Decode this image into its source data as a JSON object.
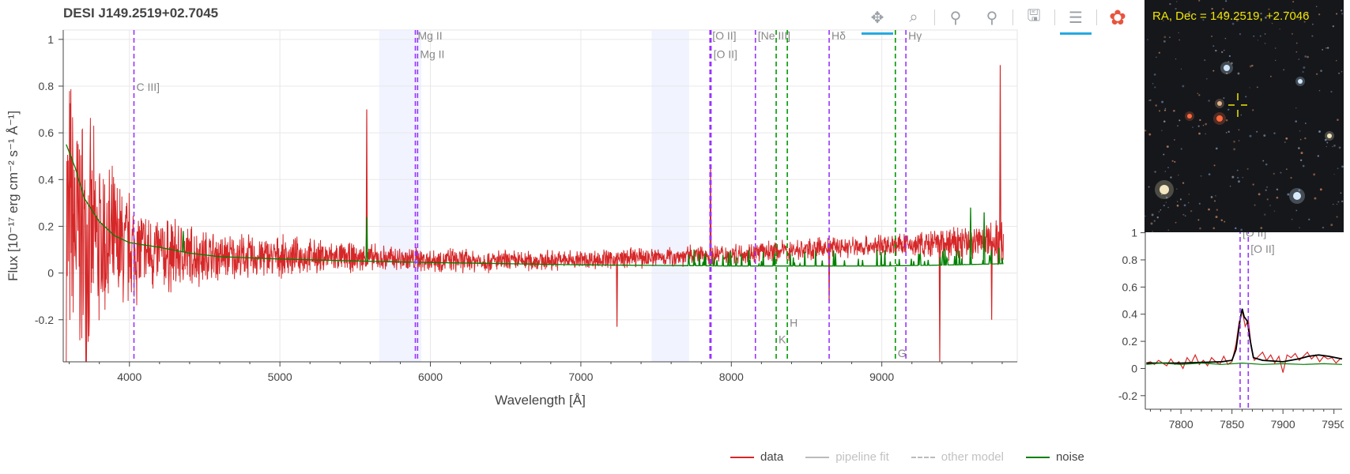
{
  "title": "DESI J149.2519+02.7045",
  "toolbar": [
    {
      "name": "pan-tool",
      "glyph": "✥",
      "active": true
    },
    {
      "name": "box-zoom-tool",
      "glyph": "⌕",
      "active": false
    },
    {
      "name": "x-zoom-in-tool",
      "glyph": "⚲",
      "active": false
    },
    {
      "name": "x-zoom-out-tool",
      "glyph": "⚲",
      "active": false
    },
    {
      "name": "save-tool",
      "glyph": "🖫",
      "active": false
    },
    {
      "name": "hover-tool",
      "glyph": "☰",
      "active": true
    },
    {
      "name": "bokeh-logo",
      "glyph": "✿",
      "active": false
    }
  ],
  "cutout": {
    "label": "RA, Dec = 149.2519, +2.7046",
    "crosshair_color": "#f2e600"
  },
  "legend": [
    {
      "label": "data",
      "color": "#d62728",
      "style": "solid",
      "muted": false
    },
    {
      "label": "pipeline fit",
      "color": "#bbbbbb",
      "style": "solid",
      "muted": true
    },
    {
      "label": "other model",
      "color": "#bbbbbb",
      "style": "dashed",
      "muted": true
    },
    {
      "label": "noise",
      "color": "#008000",
      "style": "solid",
      "muted": false
    }
  ],
  "chart_data": [
    {
      "type": "line",
      "xlabel": "Wavelength [Å]",
      "ylabel": "Flux [10⁻¹⁷ erg cm⁻² s⁻¹ Å⁻¹]",
      "xlim": [
        3560,
        9900
      ],
      "ylim": [
        -0.38,
        1.04
      ],
      "xticks": [
        4000,
        5000,
        6000,
        7000,
        8000,
        9000
      ],
      "yticks": [
        -0.2,
        0,
        0.2,
        0.4,
        0.6,
        0.8,
        1
      ],
      "grid": true,
      "masked_bands": [
        [
          5660,
          5940
        ],
        [
          7470,
          7720
        ]
      ],
      "series": [
        {
          "name": "data",
          "color": "#d62728",
          "continuum": [
            [
              3580,
              0.22
            ],
            [
              3700,
              0.15
            ],
            [
              3900,
              0.11
            ],
            [
              4200,
              0.08
            ],
            [
              4600,
              0.07
            ],
            [
              5200,
              0.07
            ],
            [
              5800,
              0.06
            ],
            [
              6500,
              0.05
            ],
            [
              7200,
              0.06
            ],
            [
              7900,
              0.08
            ],
            [
              8200,
              0.09
            ],
            [
              8700,
              0.11
            ],
            [
              9200,
              0.12
            ],
            [
              9600,
              0.13
            ],
            [
              9810,
              0.14
            ]
          ],
          "noise_amp": [
            [
              3580,
              0.8
            ],
            [
              3800,
              0.45
            ],
            [
              4100,
              0.22
            ],
            [
              4600,
              0.12
            ],
            [
              5500,
              0.07
            ],
            [
              6800,
              0.05
            ],
            [
              7600,
              0.05
            ],
            [
              8300,
              0.05
            ],
            [
              9200,
              0.06
            ],
            [
              9810,
              0.12
            ]
          ],
          "spikes": [
            [
              5577,
              0.7
            ],
            [
              7862,
              0.45
            ],
            [
              9787,
              0.89
            ],
            [
              9385,
              -0.38
            ],
            [
              8650,
              -0.12
            ],
            [
              7240,
              -0.23
            ],
            [
              9730,
              -0.2
            ]
          ]
        },
        {
          "name": "noise",
          "color": "#008000",
          "curve": [
            [
              3580,
              0.55
            ],
            [
              3640,
              0.45
            ],
            [
              3700,
              0.32
            ],
            [
              3800,
              0.22
            ],
            [
              3900,
              0.16
            ],
            [
              4000,
              0.13
            ],
            [
              4200,
              0.11
            ],
            [
              4400,
              0.085
            ],
            [
              4600,
              0.07
            ],
            [
              5000,
              0.06
            ],
            [
              5600,
              0.05
            ],
            [
              6000,
              0.045
            ],
            [
              7000,
              0.035
            ],
            [
              8000,
              0.03
            ],
            [
              9000,
              0.03
            ],
            [
              9500,
              0.035
            ],
            [
              9810,
              0.04
            ]
          ],
          "spikes": [
            [
              4358,
              0.18
            ],
            [
              5577,
              0.24
            ],
            [
              9590,
              0.28
            ],
            [
              9680,
              0.26
            ]
          ]
        }
      ],
      "lines": [
        {
          "label": "C III]",
          "x": 4030,
          "color": "#9933ff",
          "label_y": 0.78
        },
        {
          "label": "Mg II",
          "x": 5900,
          "color": "#9933ff",
          "label_y": 1.0
        },
        {
          "label": "Mg II",
          "x": 5915,
          "color": "#9933ff",
          "label_y": 0.92
        },
        {
          "label": "[O II]",
          "x": 7858,
          "color": "#9933ff",
          "label_y": 1.0
        },
        {
          "label": "[O II]",
          "x": 7865,
          "color": "#9933ff",
          "label_y": 0.92
        },
        {
          "label": "[Ne III]",
          "x": 8160,
          "color": "#9933ff",
          "label_y": 1.0
        },
        {
          "label": "K",
          "x": 8298,
          "color": "#009900",
          "label_y": -0.3
        },
        {
          "label": "H",
          "x": 8372,
          "color": "#009900",
          "label_y": -0.23
        },
        {
          "label": "Hδ",
          "x": 8650,
          "color": "#9933ff",
          "label_y": 1.0
        },
        {
          "label": "G",
          "x": 9090,
          "color": "#009900",
          "label_y": -0.36
        },
        {
          "label": "Hγ",
          "x": 9160,
          "color": "#9933ff",
          "label_y": 1.0
        }
      ]
    },
    {
      "type": "line",
      "xlim": [
        7765,
        7958
      ],
      "ylim": [
        -0.3,
        1.05
      ],
      "xticks": [
        7800,
        7850,
        7900,
        7950
      ],
      "yticks": [
        -0.2,
        0,
        0.2,
        0.4,
        0.6,
        0.8,
        1
      ],
      "grid": false,
      "series": [
        {
          "name": "data",
          "color": "#d62728",
          "points": [
            [
              7766,
              0.04
            ],
            [
              7770,
              0.05
            ],
            [
              7774,
              0.03
            ],
            [
              7778,
              0.06
            ],
            [
              7782,
              0.04
            ],
            [
              7786,
              0.02
            ],
            [
              7790,
              0.07
            ],
            [
              7794,
              0.03
            ],
            [
              7798,
              0.05
            ],
            [
              7802,
              0.0
            ],
            [
              7806,
              0.08
            ],
            [
              7810,
              0.04
            ],
            [
              7814,
              0.1
            ],
            [
              7818,
              0.03
            ],
            [
              7822,
              0.06
            ],
            [
              7826,
              0.02
            ],
            [
              7830,
              0.08
            ],
            [
              7834,
              0.05
            ],
            [
              7838,
              0.03
            ],
            [
              7842,
              0.09
            ],
            [
              7846,
              0.03
            ],
            [
              7850,
              0.05
            ],
            [
              7854,
              0.18
            ],
            [
              7857,
              0.34
            ],
            [
              7860,
              0.43
            ],
            [
              7863,
              0.31
            ],
            [
              7866,
              0.36
            ],
            [
              7869,
              0.15
            ],
            [
              7872,
              0.06
            ],
            [
              7876,
              0.09
            ],
            [
              7880,
              0.12
            ],
            [
              7884,
              0.06
            ],
            [
              7888,
              0.1
            ],
            [
              7892,
              0.04
            ],
            [
              7896,
              0.09
            ],
            [
              7900,
              -0.03
            ],
            [
              7904,
              0.1
            ],
            [
              7908,
              0.08
            ],
            [
              7912,
              0.11
            ],
            [
              7916,
              0.06
            ],
            [
              7920,
              0.09
            ],
            [
              7924,
              0.12
            ],
            [
              7928,
              0.07
            ],
            [
              7932,
              0.1
            ],
            [
              7936,
              0.05
            ],
            [
              7940,
              0.09
            ],
            [
              7944,
              0.07
            ],
            [
              7948,
              0.08
            ],
            [
              7952,
              0.04
            ],
            [
              7956,
              0.07
            ]
          ]
        },
        {
          "name": "pipeline fit",
          "color": "#000000",
          "points": [
            [
              7766,
              0.04
            ],
            [
              7800,
              0.04
            ],
            [
              7840,
              0.05
            ],
            [
              7850,
              0.06
            ],
            [
              7854,
              0.14
            ],
            [
              7858,
              0.36
            ],
            [
              7860,
              0.44
            ],
            [
              7862,
              0.38
            ],
            [
              7865,
              0.35
            ],
            [
              7868,
              0.2
            ],
            [
              7871,
              0.08
            ],
            [
              7880,
              0.06
            ],
            [
              7900,
              0.05
            ],
            [
              7915,
              0.07
            ],
            [
              7925,
              0.09
            ],
            [
              7935,
              0.1
            ],
            [
              7945,
              0.09
            ],
            [
              7958,
              0.07
            ]
          ]
        },
        {
          "name": "noise",
          "color": "#008000",
          "points": [
            [
              7766,
              0.03
            ],
            [
              7780,
              0.04
            ],
            [
              7800,
              0.03
            ],
            [
              7820,
              0.04
            ],
            [
              7840,
              0.03
            ],
            [
              7860,
              0.04
            ],
            [
              7880,
              0.03
            ],
            [
              7900,
              0.035
            ],
            [
              7920,
              0.03
            ],
            [
              7940,
              0.035
            ],
            [
              7958,
              0.03
            ]
          ]
        }
      ],
      "lines": [
        {
          "label": "[O II]",
          "x": 7858,
          "color": "#9933ff",
          "label_y": 1.0
        },
        {
          "label": "[O II]",
          "x": 7866,
          "color": "#9933ff",
          "label_y": 0.88
        }
      ],
      "masked_bands": []
    }
  ]
}
